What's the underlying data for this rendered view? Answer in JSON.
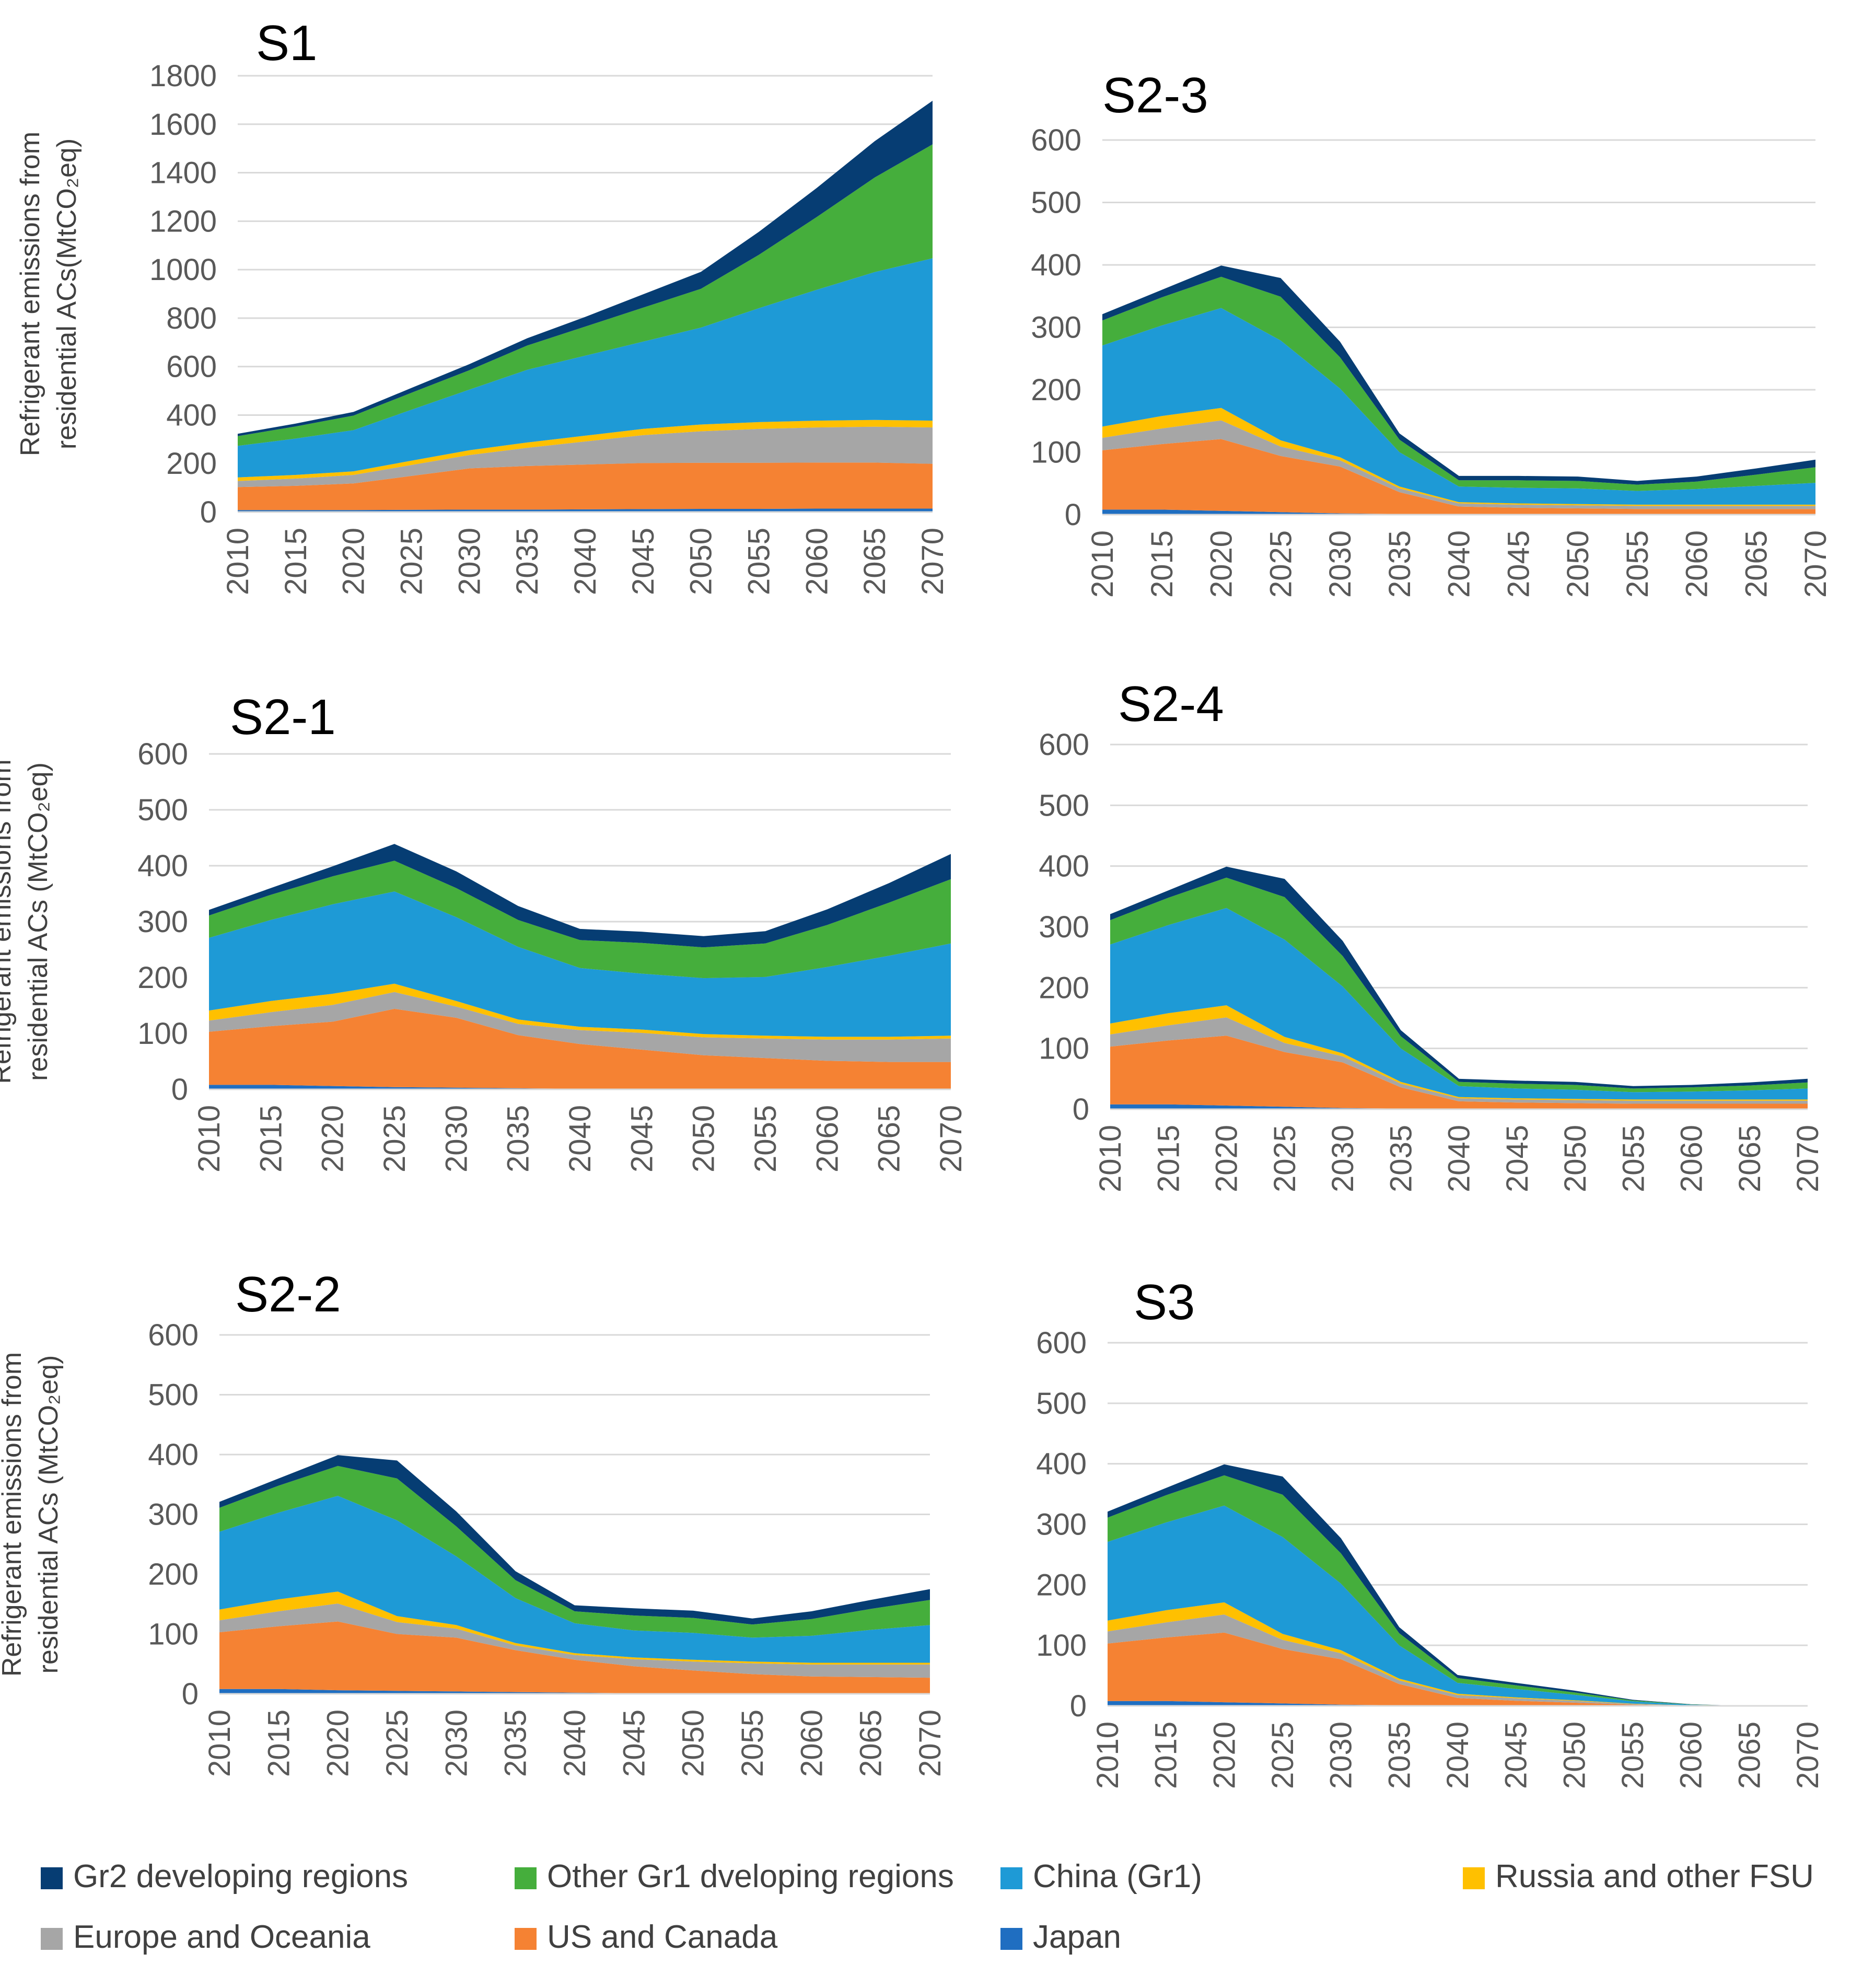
{
  "chart_data": [
    {
      "type": "area",
      "stacked": true,
      "title": "S1",
      "ylabel_line1": "Refrigerant emissions from",
      "ylabel_line2": "residential ACs(MtCO₂eq)",
      "ylim": [
        0,
        1800
      ],
      "yticks": [
        "0",
        "200",
        "400",
        "600",
        "800",
        "1000",
        "1200",
        "1400",
        "1600",
        "1800"
      ],
      "xticks": [
        "2010",
        "2015",
        "2020",
        "2025",
        "2030",
        "2035",
        "2040",
        "2045",
        "2050",
        "2055",
        "2060",
        "2065",
        "2070"
      ],
      "x": [
        2010,
        2015,
        2020,
        2025,
        2030,
        2035,
        2040,
        2045,
        2050,
        2055,
        2060,
        2065,
        2070
      ],
      "series": [
        {
          "name": "Japan",
          "values": [
            8,
            8,
            8,
            9,
            10,
            10,
            11,
            12,
            13,
            13,
            14,
            14,
            14
          ]
        },
        {
          "name": "US and Canada",
          "values": [
            95,
            100,
            110,
            140,
            170,
            180,
            185,
            190,
            190,
            190,
            190,
            190,
            185
          ]
        },
        {
          "name": "Europe and Oceania",
          "values": [
            25,
            30,
            35,
            45,
            55,
            75,
            95,
            115,
            130,
            140,
            145,
            148,
            150
          ]
        },
        {
          "name": "Russia and other FSU",
          "values": [
            15,
            15,
            15,
            18,
            20,
            22,
            24,
            26,
            28,
            28,
            28,
            28,
            28
          ]
        },
        {
          "name": "China (Gr1)",
          "values": [
            130,
            150,
            170,
            210,
            250,
            300,
            330,
            360,
            400,
            470,
            540,
            610,
            670
          ]
        },
        {
          "name": "Other Gr1 dveloping regions",
          "values": [
            40,
            50,
            60,
            70,
            80,
            100,
            120,
            140,
            160,
            220,
            300,
            390,
            470
          ]
        },
        {
          "name": "Gr2 developing regions",
          "values": [
            10,
            12,
            15,
            20,
            25,
            30,
            40,
            55,
            70,
            95,
            120,
            150,
            180
          ]
        }
      ]
    },
    {
      "type": "area",
      "stacked": true,
      "title": "S2-3",
      "ylim": [
        0,
        600
      ],
      "yticks": [
        "0",
        "100",
        "200",
        "300",
        "400",
        "500",
        "600"
      ],
      "xticks": [
        "2010",
        "2015",
        "2020",
        "2025",
        "2030",
        "2035",
        "2040",
        "2045",
        "2050",
        "2055",
        "2060",
        "2065",
        "2070"
      ],
      "x": [
        2010,
        2015,
        2020,
        2025,
        2030,
        2035,
        2040,
        2045,
        2050,
        2055,
        2060,
        2065,
        2070
      ],
      "series": [
        {
          "name": "Japan",
          "values": [
            8,
            8,
            6,
            4,
            2,
            1,
            1,
            1,
            1,
            1,
            1,
            1,
            1
          ]
        },
        {
          "name": "US and Canada",
          "values": [
            95,
            105,
            115,
            90,
            75,
            35,
            12,
            10,
            9,
            8,
            8,
            8,
            8
          ]
        },
        {
          "name": "Europe and Oceania",
          "values": [
            20,
            25,
            30,
            15,
            10,
            6,
            5,
            5,
            5,
            5,
            5,
            5,
            5
          ]
        },
        {
          "name": "Russia and other FSU",
          "values": [
            18,
            20,
            20,
            10,
            5,
            3,
            2,
            2,
            2,
            2,
            2,
            2,
            2
          ]
        },
        {
          "name": "China (Gr1)",
          "values": [
            130,
            145,
            160,
            160,
            110,
            55,
            25,
            25,
            25,
            22,
            25,
            30,
            35
          ]
        },
        {
          "name": "Other Gr1 dveloping regions",
          "values": [
            40,
            45,
            50,
            70,
            50,
            20,
            10,
            12,
            12,
            10,
            12,
            18,
            25
          ]
        },
        {
          "name": "Gr2 developing regions",
          "values": [
            10,
            12,
            18,
            30,
            25,
            10,
            7,
            7,
            7,
            6,
            8,
            10,
            12
          ]
        }
      ]
    },
    {
      "type": "area",
      "stacked": true,
      "title": "S2-1",
      "ylabel_line1": "Refrigerant emissions from",
      "ylabel_line2": "residential ACs (MtCO₂eq)",
      "ylim": [
        0,
        600
      ],
      "yticks": [
        "0",
        "100",
        "200",
        "300",
        "400",
        "500",
        "600"
      ],
      "xticks": [
        "2010",
        "2015",
        "2020",
        "2025",
        "2030",
        "2035",
        "2040",
        "2045",
        "2050",
        "2055",
        "2060",
        "2065",
        "2070"
      ],
      "x": [
        2010,
        2015,
        2020,
        2025,
        2030,
        2035,
        2040,
        2045,
        2050,
        2055,
        2060,
        2065,
        2070
      ],
      "series": [
        {
          "name": "Japan",
          "values": [
            8,
            8,
            6,
            4,
            3,
            2,
            1,
            1,
            1,
            1,
            1,
            1,
            1
          ]
        },
        {
          "name": "US and Canada",
          "values": [
            95,
            105,
            115,
            140,
            125,
            95,
            80,
            70,
            60,
            55,
            50,
            48,
            48
          ]
        },
        {
          "name": "Europe and Oceania",
          "values": [
            20,
            25,
            30,
            30,
            20,
            20,
            25,
            30,
            32,
            35,
            38,
            40,
            42
          ]
        },
        {
          "name": "Russia and other FSU",
          "values": [
            18,
            20,
            20,
            15,
            10,
            8,
            6,
            6,
            6,
            5,
            5,
            5,
            5
          ]
        },
        {
          "name": "China (Gr1)",
          "values": [
            130,
            145,
            160,
            165,
            150,
            130,
            105,
            100,
            100,
            105,
            125,
            145,
            165
          ]
        },
        {
          "name": "Other Gr1 dveloping regions",
          "values": [
            40,
            45,
            50,
            55,
            52,
            48,
            50,
            55,
            55,
            60,
            75,
            95,
            115
          ]
        },
        {
          "name": "Gr2 developing regions",
          "values": [
            10,
            12,
            18,
            30,
            30,
            25,
            20,
            20,
            20,
            22,
            28,
            35,
            45
          ]
        }
      ]
    },
    {
      "type": "area",
      "stacked": true,
      "title": "S2-4",
      "ylim": [
        0,
        600
      ],
      "yticks": [
        "0",
        "100",
        "200",
        "300",
        "400",
        "500",
        "600"
      ],
      "xticks": [
        "2010",
        "2015",
        "2020",
        "2025",
        "2030",
        "2035",
        "2040",
        "2045",
        "2050",
        "2055",
        "2060",
        "2065",
        "2070"
      ],
      "x": [
        2010,
        2015,
        2020,
        2025,
        2030,
        2035,
        2040,
        2045,
        2050,
        2055,
        2060,
        2065,
        2070
      ],
      "series": [
        {
          "name": "Japan",
          "values": [
            8,
            8,
            6,
            4,
            2,
            1,
            1,
            1,
            1,
            1,
            1,
            1,
            1
          ]
        },
        {
          "name": "US and Canada",
          "values": [
            95,
            105,
            115,
            90,
            75,
            35,
            12,
            10,
            9,
            8,
            8,
            8,
            8
          ]
        },
        {
          "name": "Europe and Oceania",
          "values": [
            20,
            25,
            30,
            15,
            10,
            6,
            5,
            5,
            5,
            5,
            5,
            5,
            5
          ]
        },
        {
          "name": "Russia and other FSU",
          "values": [
            18,
            20,
            20,
            10,
            5,
            3,
            2,
            2,
            2,
            2,
            2,
            2,
            2
          ]
        },
        {
          "name": "China (Gr1)",
          "values": [
            130,
            145,
            160,
            160,
            110,
            55,
            18,
            16,
            15,
            12,
            13,
            15,
            18
          ]
        },
        {
          "name": "Other Gr1 dveloping regions",
          "values": [
            40,
            45,
            50,
            70,
            50,
            20,
            7,
            8,
            8,
            6,
            7,
            8,
            10
          ]
        },
        {
          "name": "Gr2 developing regions",
          "values": [
            10,
            12,
            18,
            30,
            25,
            10,
            5,
            5,
            5,
            4,
            4,
            5,
            6
          ]
        }
      ]
    },
    {
      "type": "area",
      "stacked": true,
      "title": "S2-2",
      "ylabel_line1": "Refrigerant emissions from",
      "ylabel_line2": "residential ACs (MtCO₂eq)",
      "ylim": [
        0,
        600
      ],
      "yticks": [
        "0",
        "100",
        "200",
        "300",
        "400",
        "500",
        "600"
      ],
      "xticks": [
        "2010",
        "2015",
        "2020",
        "2025",
        "2030",
        "2035",
        "2040",
        "2045",
        "2050",
        "2055",
        "2060",
        "2065",
        "2070"
      ],
      "x": [
        2010,
        2015,
        2020,
        2025,
        2030,
        2035,
        2040,
        2045,
        2050,
        2055,
        2060,
        2065,
        2070
      ],
      "series": [
        {
          "name": "Japan",
          "values": [
            8,
            8,
            6,
            5,
            4,
            3,
            2,
            1,
            1,
            1,
            1,
            1,
            1
          ]
        },
        {
          "name": "US and Canada",
          "values": [
            95,
            105,
            115,
            95,
            90,
            70,
            55,
            45,
            38,
            32,
            28,
            27,
            26
          ]
        },
        {
          "name": "Europe and Oceania",
          "values": [
            20,
            25,
            30,
            20,
            15,
            8,
            8,
            12,
            15,
            18,
            20,
            21,
            22
          ]
        },
        {
          "name": "Russia and other FSU",
          "values": [
            18,
            20,
            20,
            10,
            6,
            4,
            3,
            3,
            3,
            3,
            3,
            3,
            3
          ]
        },
        {
          "name": "China (Gr1)",
          "values": [
            130,
            145,
            160,
            160,
            115,
            75,
            50,
            45,
            45,
            40,
            45,
            55,
            63
          ]
        },
        {
          "name": "Other Gr1 dveloping regions",
          "values": [
            40,
            45,
            50,
            70,
            50,
            30,
            20,
            25,
            25,
            22,
            28,
            35,
            42
          ]
        },
        {
          "name": "Gr2 developing regions",
          "values": [
            10,
            12,
            18,
            30,
            25,
            15,
            10,
            12,
            12,
            10,
            13,
            15,
            18
          ]
        }
      ]
    },
    {
      "type": "area",
      "stacked": true,
      "title": "S3",
      "ylim": [
        0,
        600
      ],
      "yticks": [
        "0",
        "100",
        "200",
        "300",
        "400",
        "500",
        "600"
      ],
      "xticks": [
        "2010",
        "2015",
        "2020",
        "2025",
        "2030",
        "2035",
        "2040",
        "2045",
        "2050",
        "2055",
        "2060",
        "2065",
        "2070"
      ],
      "x": [
        2010,
        2015,
        2020,
        2025,
        2030,
        2035,
        2040,
        2045,
        2050,
        2055,
        2060,
        2065,
        2070
      ],
      "series": [
        {
          "name": "Japan",
          "values": [
            8,
            8,
            6,
            4,
            2,
            1,
            1,
            0.5,
            0.3,
            0.1,
            0,
            0,
            0
          ]
        },
        {
          "name": "US and Canada",
          "values": [
            95,
            105,
            115,
            90,
            75,
            35,
            12,
            8,
            5,
            2,
            0.5,
            0,
            0
          ]
        },
        {
          "name": "Europe and Oceania",
          "values": [
            20,
            25,
            30,
            15,
            10,
            6,
            5,
            4,
            3,
            1,
            0.3,
            0,
            0
          ]
        },
        {
          "name": "Russia and other FSU",
          "values": [
            18,
            20,
            20,
            10,
            5,
            3,
            2,
            1.5,
            1,
            0.5,
            0.1,
            0,
            0
          ]
        },
        {
          "name": "China (Gr1)",
          "values": [
            130,
            145,
            160,
            160,
            110,
            55,
            18,
            14,
            9,
            4,
            1,
            0,
            0
          ]
        },
        {
          "name": "Other Gr1 dveloping regions",
          "values": [
            40,
            45,
            50,
            70,
            50,
            20,
            8,
            6,
            4,
            1.5,
            0.5,
            0,
            0
          ]
        },
        {
          "name": "Gr2 developing regions",
          "values": [
            10,
            12,
            18,
            30,
            25,
            10,
            5,
            4,
            3,
            1,
            0.3,
            0,
            0
          ]
        }
      ]
    }
  ],
  "colors": {
    "Japan": "#1f6ec1",
    "US and Canada": "#f58233",
    "Europe and Oceania": "#a6a6a6",
    "Russia and other FSU": "#ffc000",
    "China (Gr1)": "#1e9ad6",
    "Other Gr1 dveloping regions": "#45ae3c",
    "Gr2 developing regions": "#063d73"
  },
  "legend": {
    "items": [
      {
        "label": "Gr2 developing regions",
        "color": "#063d73"
      },
      {
        "label": "Other Gr1 dveloping regions",
        "color": "#45ae3c"
      },
      {
        "label": "China (Gr1)",
        "color": "#1e9ad6"
      },
      {
        "label": "Russia and other FSU",
        "color": "#ffc000"
      },
      {
        "label": "Europe and Oceania",
        "color": "#a6a6a6"
      },
      {
        "label": "US and Canada",
        "color": "#f58233"
      },
      {
        "label": "Japan",
        "color": "#1f6ec1"
      }
    ]
  }
}
